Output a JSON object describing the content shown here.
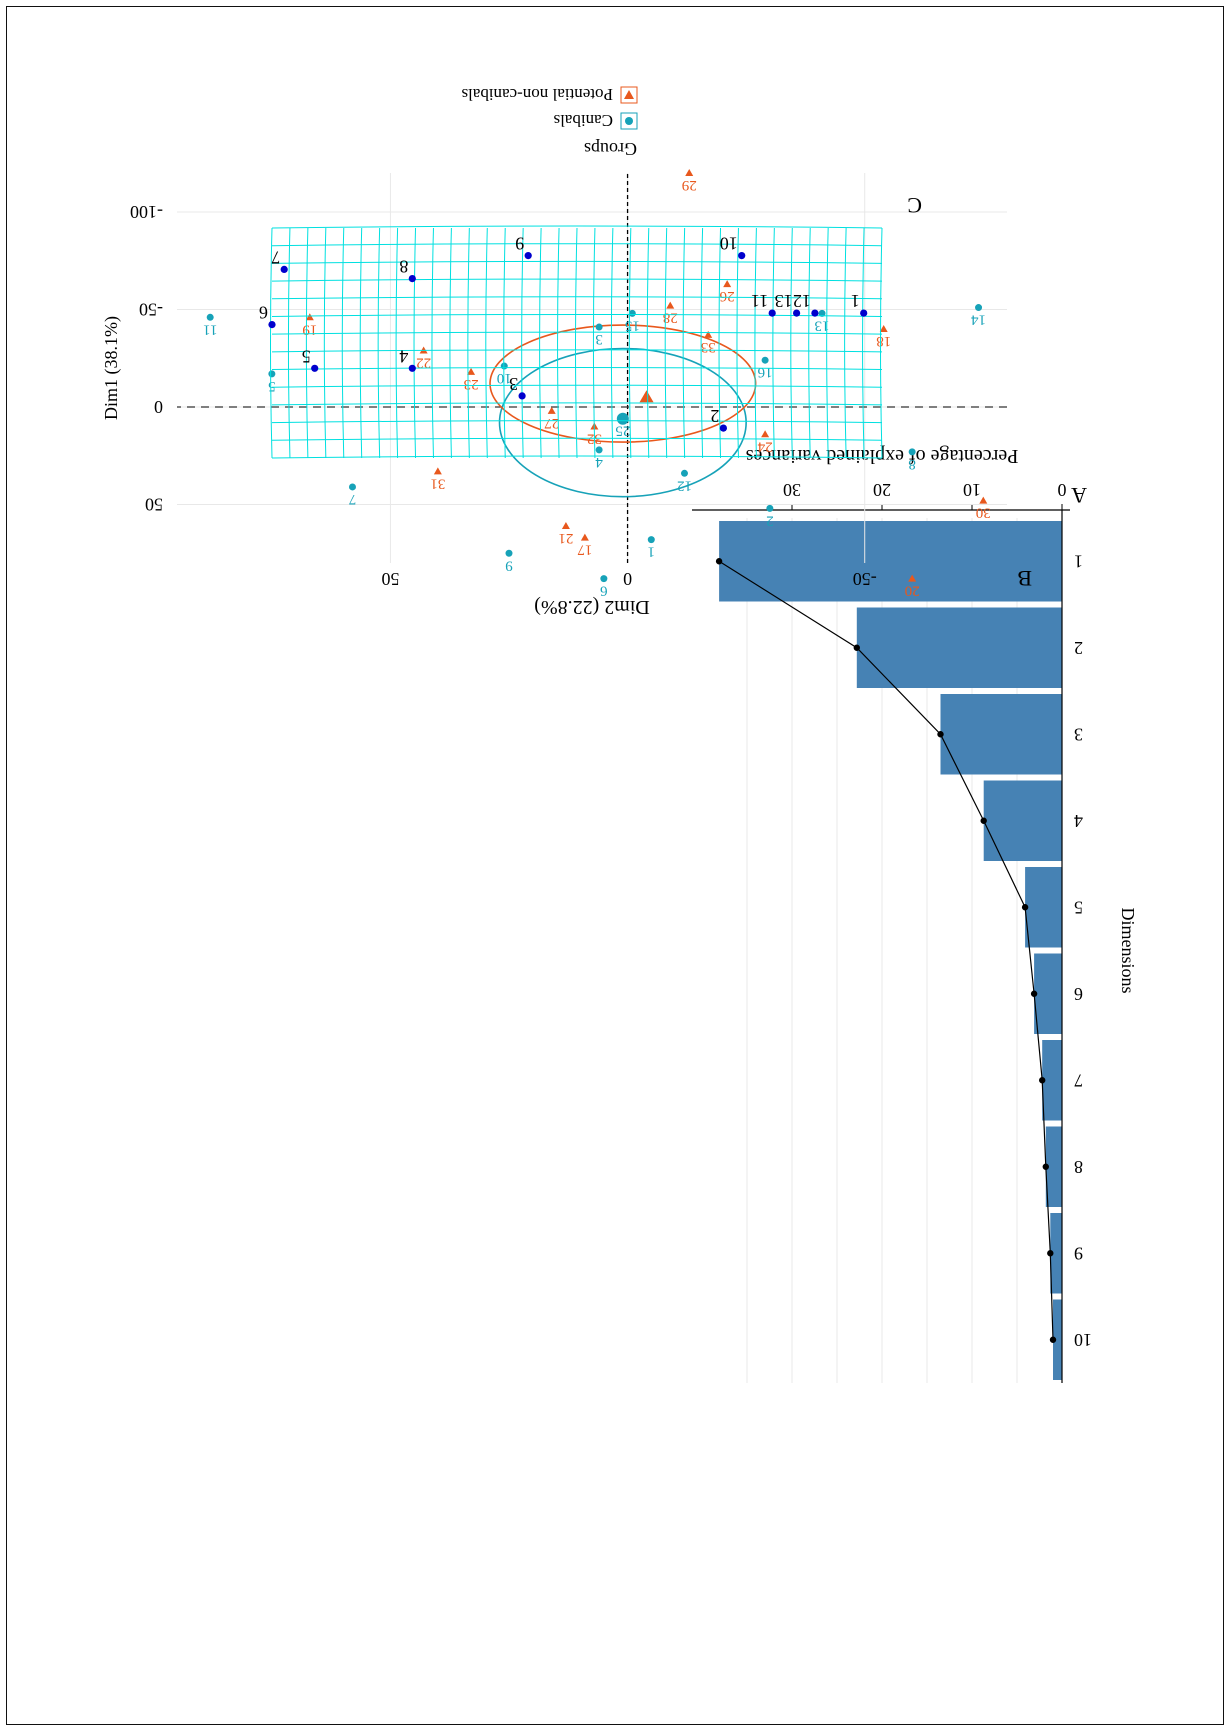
{
  "figure": {
    "rotation_note": "",
    "colors": {
      "bar": "#4682b4",
      "group_a": "#17a2b8",
      "group_b": "#e8581d",
      "grid": "#e8e8e8",
      "landmark": "#0000cd",
      "warp_grid": "#00e0e0"
    }
  },
  "chart_data": [
    {
      "panel_letter": "A",
      "type": "bar",
      "title": "",
      "xlabel": "Dimensions",
      "ylabel": "Percentage of explained variances",
      "categories": [
        "1",
        "2",
        "3",
        "4",
        "5",
        "6",
        "7",
        "8",
        "9",
        "10"
      ],
      "values": [
        38.1,
        22.8,
        13.5,
        8.7,
        4.1,
        3.1,
        2.2,
        1.8,
        1.3,
        1.0
      ],
      "ylim": [
        0,
        40
      ],
      "yticks": [
        "0",
        "10",
        "20",
        "30"
      ],
      "overlay_line": true,
      "grid": true
    },
    {
      "panel_letter": "B",
      "type": "scatter",
      "xlabel": "Dim2 (22.8%)",
      "ylabel": "Dim1 (38.1%)",
      "xlim": [
        -80,
        95
      ],
      "ylim": [
        -120,
        80
      ],
      "xticks": [
        "-50",
        "0",
        "50"
      ],
      "yticks": [
        "-100",
        "-50",
        "0",
        "50"
      ],
      "legend": {
        "title": "Groups",
        "items": [
          "Canibals",
          "Potential non-canibals"
        ],
        "position": "right"
      },
      "series": [
        {
          "name": "Canibals",
          "points": [
            {
              "label": "1",
              "x": -5,
              "y": 68
            },
            {
              "label": "2",
              "x": -30,
              "y": 52
            },
            {
              "label": "3",
              "x": 6,
              "y": -41
            },
            {
              "label": "4",
              "x": 6,
              "y": 22
            },
            {
              "label": "5",
              "x": 75,
              "y": -17
            },
            {
              "label": "6",
              "x": 5,
              "y": 88
            },
            {
              "label": "7",
              "x": 58,
              "y": 41
            },
            {
              "label": "8",
              "x": -60,
              "y": 23
            },
            {
              "label": "9",
              "x": 25,
              "y": 75
            },
            {
              "label": "10",
              "x": 26,
              "y": -21
            },
            {
              "label": "11",
              "x": 88,
              "y": -46
            },
            {
              "label": "12",
              "x": -12,
              "y": 34
            },
            {
              "label": "13",
              "x": -41,
              "y": -48
            },
            {
              "label": "14",
              "x": -74,
              "y": -51
            },
            {
              "label": "15",
              "x": -1,
              "y": -48
            },
            {
              "label": "16",
              "x": -29,
              "y": -24
            },
            {
              "label": "25",
              "x": 1,
              "y": 6
            }
          ],
          "centroid": {
            "x": 1,
            "y": 6
          },
          "ellipse": {
            "cx": 1,
            "cy": 8,
            "rx": 26,
            "ry": 38
          }
        },
        {
          "name": "Potential non-canibals",
          "points": [
            {
              "label": "17",
              "x": 9,
              "y": 67
            },
            {
              "label": "18",
              "x": -54,
              "y": -40
            },
            {
              "label": "19",
              "x": 67,
              "y": -46
            },
            {
              "label": "20",
              "x": -60,
              "y": 88
            },
            {
              "label": "21",
              "x": 13,
              "y": 61
            },
            {
              "label": "22",
              "x": 43,
              "y": -29
            },
            {
              "label": "23",
              "x": 33,
              "y": -18
            },
            {
              "label": "24",
              "x": -29,
              "y": 14
            },
            {
              "label": "26",
              "x": -21,
              "y": -63
            },
            {
              "label": "27",
              "x": 16,
              "y": 2
            },
            {
              "label": "28",
              "x": -9,
              "y": -52
            },
            {
              "label": "29",
              "x": -13,
              "y": -120
            },
            {
              "label": "30",
              "x": -75,
              "y": 48
            },
            {
              "label": "31",
              "x": 40,
              "y": 33
            },
            {
              "label": "32",
              "x": 7,
              "y": 10
            },
            {
              "label": "33",
              "x": -17,
              "y": -37
            }
          ],
          "centroid": {
            "x": -4,
            "y": -5
          },
          "ellipse": {
            "cx": 1,
            "cy": -12,
            "rx": 28,
            "ry": 30
          }
        }
      ]
    },
    {
      "panel_letter": "C",
      "type": "scatter",
      "title": "",
      "landmarks": [
        {
          "label": "1",
          "x": 0.03,
          "y": 0.37
        },
        {
          "label": "2",
          "x": 0.26,
          "y": 0.87
        },
        {
          "label": "3",
          "x": 0.59,
          "y": 0.73
        },
        {
          "label": "4",
          "x": 0.77,
          "y": 0.61
        },
        {
          "label": "5",
          "x": 0.93,
          "y": 0.61
        },
        {
          "label": "6",
          "x": 1.0,
          "y": 0.42
        },
        {
          "label": "7",
          "x": 0.98,
          "y": 0.18
        },
        {
          "label": "8",
          "x": 0.77,
          "y": 0.22
        },
        {
          "label": "9",
          "x": 0.58,
          "y": 0.12
        },
        {
          "label": "10",
          "x": 0.23,
          "y": 0.12
        },
        {
          "label": "11",
          "x": 0.18,
          "y": 0.37
        },
        {
          "label": "12",
          "x": 0.11,
          "y": 0.37
        },
        {
          "label": "13",
          "x": 0.14,
          "y": 0.37
        }
      ]
    }
  ]
}
